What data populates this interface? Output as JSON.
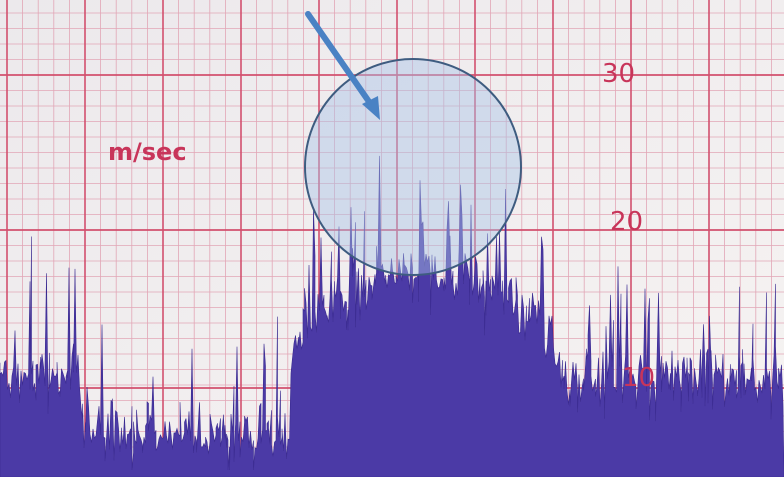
{
  "labels": {
    "unit": "m/sec",
    "scale": [
      "30",
      "20",
      "10"
    ]
  }
}
